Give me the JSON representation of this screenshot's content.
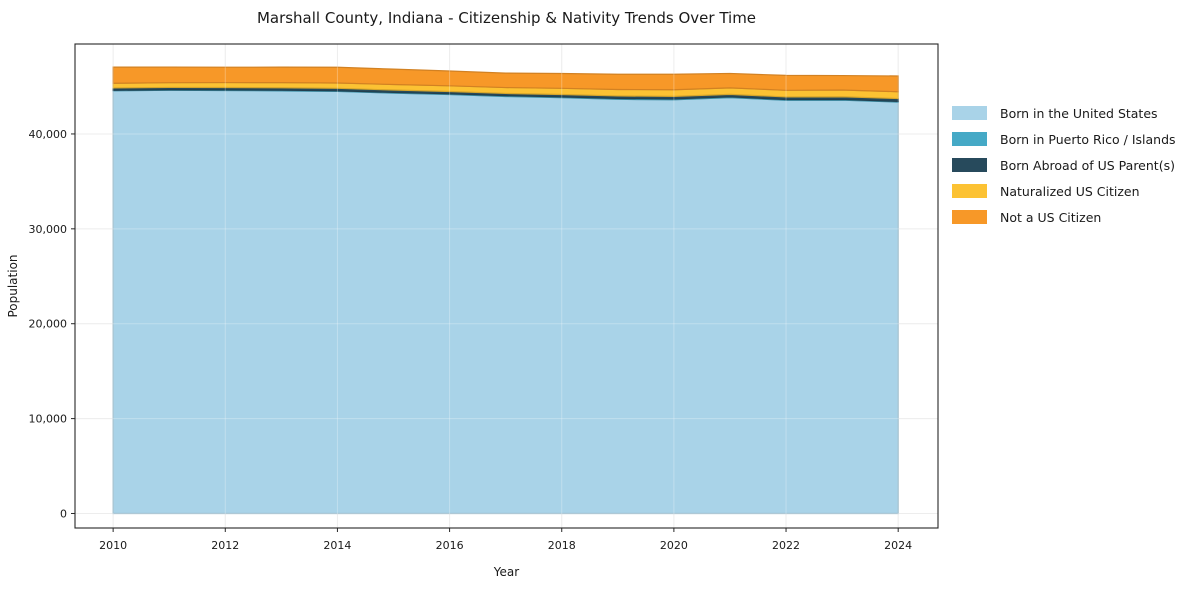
{
  "chart_data": {
    "type": "area",
    "stacked": true,
    "title": "Marshall County, Indiana - Citizenship & Nativity Trends Over Time",
    "xlabel": "Year",
    "ylabel": "Population",
    "x": [
      2010,
      2011,
      2012,
      2013,
      2014,
      2015,
      2016,
      2017,
      2018,
      2019,
      2020,
      2021,
      2022,
      2023,
      2024
    ],
    "series": [
      {
        "name": "Born in the United States",
        "color": "#a9d3e8",
        "values": [
          44550,
          44600,
          44580,
          44540,
          44480,
          44300,
          44150,
          43950,
          43820,
          43650,
          43600,
          43830,
          43550,
          43560,
          43360
        ]
      },
      {
        "name": "Born in Puerto Rico / Islands",
        "color": "#45a9c6",
        "values": [
          60,
          60,
          65,
          70,
          70,
          75,
          80,
          85,
          90,
          95,
          90,
          85,
          80,
          80,
          70
        ]
      },
      {
        "name": "Born Abroad of US Parent(s)",
        "color": "#274a5c",
        "values": [
          240,
          240,
          250,
          260,
          260,
          255,
          245,
          235,
          250,
          260,
          270,
          260,
          270,
          280,
          300
        ]
      },
      {
        "name": "Naturalized US Citizen",
        "color": "#fcc233",
        "values": [
          490,
          500,
          520,
          540,
          560,
          580,
          600,
          620,
          650,
          680,
          700,
          680,
          700,
          715,
          720
        ]
      },
      {
        "name": "Not a US Citizen",
        "color": "#f79828",
        "values": [
          1700,
          1650,
          1620,
          1630,
          1660,
          1620,
          1560,
          1520,
          1560,
          1610,
          1630,
          1520,
          1570,
          1520,
          1660
        ]
      }
    ],
    "xticks": [
      2010,
      2012,
      2014,
      2016,
      2018,
      2020,
      2022,
      2024
    ],
    "xtick_labels": [
      "2010",
      "2012",
      "2014",
      "2016",
      "2018",
      "2020",
      "2022",
      "2024"
    ],
    "yticks": [
      0,
      10000,
      20000,
      30000,
      40000
    ],
    "ytick_labels": [
      "0",
      "10,000",
      "20,000",
      "30,000",
      "40,000"
    ],
    "xlim": [
      2009.32,
      2024.71
    ],
    "ylim": [
      -1530,
      49480
    ],
    "grid": true,
    "legend_position": "right-outside",
    "colors": {
      "text": "#1a1a1a",
      "spine": "#262626",
      "grid": "#e7e7e7",
      "background": "#ffffff"
    }
  }
}
